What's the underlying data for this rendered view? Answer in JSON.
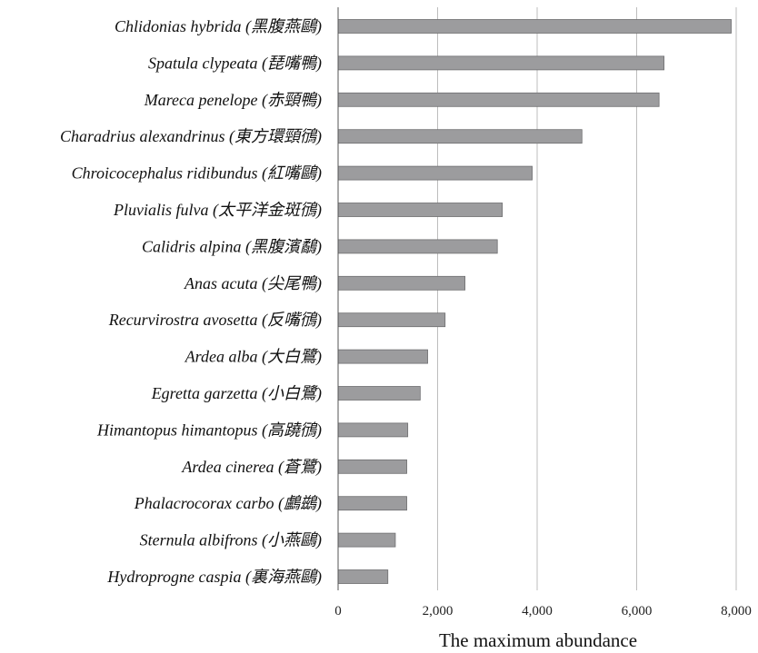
{
  "chart_data": {
    "type": "bar",
    "orientation": "horizontal",
    "categories": [
      "Chlidonias hybrida (黑腹燕鷗)",
      "Spatula clypeata (琵嘴鴨)",
      "Mareca penelope (赤頸鴨)",
      "Charadrius alexandrinus (東方環頸鴴)",
      "Chroicocephalus ridibundus (紅嘴鷗)",
      "Pluvialis fulva (太平洋金斑鴴)",
      "Calidris alpina (黑腹濱鷸)",
      "Anas acuta (尖尾鴨)",
      "Recurvirostra avosetta (反嘴鴴)",
      "Ardea alba (大白鷺)",
      "Egretta garzetta (小白鷺)",
      "Himantopus himantopus (高蹺鴴)",
      "Ardea cinerea (蒼鷺)",
      "Phalacrocorax carbo (鸕鷀)",
      "Sternula albifrons (小燕鷗)",
      "Hydroprogne caspia (裏海燕鷗)"
    ],
    "values": [
      7900,
      6550,
      6450,
      4900,
      3900,
      3300,
      3200,
      2550,
      2150,
      1800,
      1650,
      1400,
      1380,
      1380,
      1150,
      1000
    ],
    "xlim": [
      0,
      8000
    ],
    "xticks": [
      0,
      2000,
      4000,
      6000,
      8000
    ],
    "xtick_labels": [
      "0",
      "2,000",
      "4,000",
      "6,000",
      "8,000"
    ],
    "xlabel": "The maximum abundance",
    "grid": "vertical",
    "colors": {
      "bar": "#9c9c9e",
      "bar_edge": "#6e6e70",
      "grid": "#bdbdbd"
    }
  }
}
